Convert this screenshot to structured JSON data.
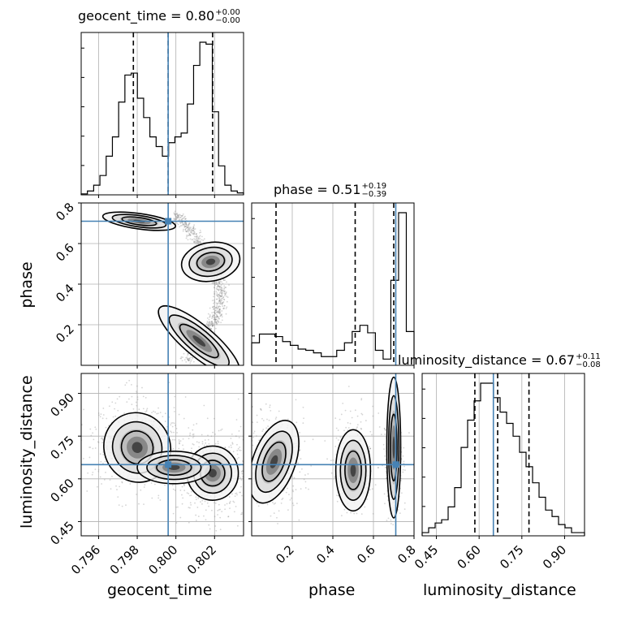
{
  "chart_data": {
    "type": "corner",
    "parameters": [
      "geocent_time",
      "phase",
      "luminosity_distance"
    ],
    "truths": {
      "geocent_time": 0.7996,
      "phase": 0.71,
      "luminosity_distance": 0.65
    },
    "titles": [
      {
        "param": "geocent_time",
        "text": "geocent_time = 0.80",
        "plus": "+0.00",
        "minus": "−0.00"
      },
      {
        "param": "phase",
        "text": "phase = 0.51",
        "plus": "+0.19",
        "minus": "−0.39"
      },
      {
        "param": "luminosity_distance",
        "text": "luminosity_distance = 0.67",
        "plus": "+0.11",
        "minus": "−0.08"
      }
    ],
    "axis_labels": {
      "geocent_time": "geocent_time",
      "phase": "phase",
      "luminosity_distance": "luminosity_distance"
    },
    "ranges": {
      "geocent_time": [
        0.7951,
        0.8035
      ],
      "phase": [
        0.0,
        0.8
      ],
      "luminosity_distance": [
        0.4,
        0.97
      ]
    },
    "ticks": {
      "geocent_time": [
        0.796,
        0.798,
        0.8,
        0.802
      ],
      "phase": [
        0.2,
        0.4,
        0.6,
        0.8
      ],
      "luminosity_distance": [
        0.45,
        0.6,
        0.75,
        0.9
      ]
    },
    "tick_labels": {
      "geocent_time": [
        "0.796",
        "0.798",
        "0.800",
        "0.802"
      ],
      "phase": [
        "0.2",
        "0.4",
        "0.6",
        "0.8"
      ],
      "luminosity_distance": [
        "0.45",
        "0.60",
        "0.75",
        "0.90"
      ]
    },
    "quantiles": {
      "geocent_time": [
        0.7978,
        0.7996,
        0.8019
      ],
      "phase": [
        0.12,
        0.51,
        0.7
      ],
      "luminosity_distance": [
        0.585,
        0.665,
        0.775
      ]
    },
    "histograms": {
      "geocent_time": {
        "edges_range": [
          0.7951,
          0.8035
        ],
        "counts": [
          0.5,
          2,
          5,
          10,
          20,
          30,
          48,
          62,
          63,
          50,
          40,
          30,
          25,
          20,
          27,
          30,
          32,
          47,
          67,
          79,
          78,
          43,
          15,
          5,
          2,
          1
        ]
      },
      "phase": {
        "edges_range": [
          0.0,
          0.8
        ],
        "counts": [
          18,
          25,
          25,
          23,
          19,
          16,
          13,
          12,
          10,
          7,
          7,
          12,
          18,
          27,
          32,
          26,
          12,
          5,
          68,
          122,
          27
        ]
      },
      "luminosity_distance": {
        "edges_range": [
          0.4,
          0.97
        ],
        "counts": [
          2,
          5,
          8,
          10,
          18,
          30,
          55,
          72,
          84,
          95,
          95,
          86,
          77,
          70,
          62,
          52,
          43,
          33,
          24,
          16,
          12,
          7,
          5,
          2,
          2
        ]
      }
    },
    "grid": true,
    "scatter_color": "#888888",
    "truth_color": "#4682b4",
    "contour_color": "#000000"
  }
}
